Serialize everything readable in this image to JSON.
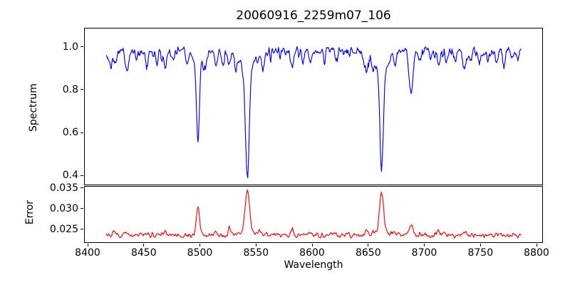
{
  "chart_data": {
    "type": "line",
    "title": "20060916_2259m07_106",
    "xlabel": "Wavelength",
    "x_start": 8416,
    "x_end": 8787,
    "x_step": 0.5,
    "xlim": [
      8396.8,
      8805.7
    ],
    "xticks": [
      8400,
      8450,
      8500,
      8550,
      8600,
      8650,
      8700,
      8750,
      8800
    ],
    "xtick_labels": [
      "8400",
      "8450",
      "8500",
      "8550",
      "8600",
      "8650",
      "8700",
      "8750",
      "8800"
    ],
    "noise_seed": 20060916,
    "grid": false,
    "legend": "none",
    "panels": [
      {
        "name": "spectrum",
        "ylabel": "Spectrum",
        "color": "#0000ff",
        "ylim": [
          0.354,
          1.089
        ],
        "yticks": [
          0.4,
          0.6,
          0.8,
          1.0
        ],
        "ytick_labels": [
          "0.4",
          "0.6",
          "0.8",
          "1.0"
        ],
        "continuum": 0.988,
        "noise_amp": 0.05,
        "micro_absorption_amp": 0.5,
        "absorption_lines": [
          [
            8417.5,
            0.05,
            1.5
          ],
          [
            8421,
            0.04,
            1.0
          ],
          [
            8424,
            0.06,
            1.2
          ],
          [
            8434.5,
            0.095,
            1.4
          ],
          [
            8443,
            0.04,
            1.0
          ],
          [
            8452,
            0.06,
            1.2
          ],
          [
            8461,
            0.05,
            1.1
          ],
          [
            8468.5,
            0.075,
            1.3
          ],
          [
            8476,
            0.05,
            1.1
          ],
          [
            8488,
            0.05,
            1.1
          ],
          [
            8498.0,
            0.39,
            1.3
          ],
          [
            8498.0,
            0.055,
            5.0
          ],
          [
            8504,
            0.05,
            1.1
          ],
          [
            8514.2,
            0.075,
            1.3
          ],
          [
            8520,
            0.06,
            1.2
          ],
          [
            8526,
            0.05,
            1.1
          ],
          [
            8532,
            0.05,
            1.1
          ],
          [
            8542.1,
            0.5,
            1.7
          ],
          [
            8542.1,
            0.085,
            7.0
          ],
          [
            8556,
            0.06,
            1.2
          ],
          [
            8582.3,
            0.065,
            1.3
          ],
          [
            8592,
            0.05,
            1.1
          ],
          [
            8598.8,
            0.055,
            1.2
          ],
          [
            8611,
            0.05,
            1.0
          ],
          [
            8621.5,
            0.05,
            1.0
          ],
          [
            8648.5,
            0.09,
            1.4
          ],
          [
            8654,
            0.05,
            1.0
          ],
          [
            8662.1,
            0.475,
            1.55
          ],
          [
            8662.1,
            0.075,
            6.0
          ],
          [
            8674,
            0.05,
            1.1
          ],
          [
            8688.6,
            0.2,
            1.7
          ],
          [
            8696,
            0.05,
            1.0
          ],
          [
            8706,
            0.04,
            1.0
          ],
          [
            8713,
            0.055,
            1.1
          ],
          [
            8720,
            0.05,
            1.0
          ],
          [
            8728,
            0.04,
            1.0
          ],
          [
            8736.5,
            0.08,
            1.3
          ],
          [
            8742,
            0.05,
            1.0
          ],
          [
            8751,
            0.04,
            1.0
          ],
          [
            8757,
            0.05,
            1.0
          ],
          [
            8765,
            0.05,
            1.0
          ],
          [
            8772,
            0.045,
            1.0
          ],
          [
            8778,
            0.04,
            1.0
          ],
          [
            8784,
            0.04,
            1.0
          ]
        ]
      },
      {
        "name": "error",
        "ylabel": "Error",
        "color": "#ff0000",
        "ylim": [
          0.0217,
          0.0355
        ],
        "yticks": [
          0.025,
          0.03,
          0.035
        ],
        "ytick_labels": [
          "0.025",
          "0.030",
          "0.035"
        ],
        "baseline": 0.0234,
        "noise_amp": 0.0016,
        "spike_amp": 0.008,
        "peaks": [
          [
            8498.0,
            0.0068,
            1.5
          ],
          [
            8542.1,
            0.0105,
            1.9
          ],
          [
            8542.1,
            0.0008,
            7.0
          ],
          [
            8662.1,
            0.01,
            1.8
          ],
          [
            8662.1,
            0.0008,
            6.0
          ],
          [
            8688.6,
            0.0029,
            1.5
          ],
          [
            8424,
            0.0008,
            1.2
          ],
          [
            8434.5,
            0.0009,
            1.4
          ],
          [
            8468.5,
            0.0007,
            1.3
          ],
          [
            8514.2,
            0.0009,
            1.3
          ],
          [
            8526,
            0.0013,
            1.0
          ],
          [
            8553,
            0.0013,
            1.0
          ],
          [
            8582.3,
            0.0008,
            1.2
          ],
          [
            8598.8,
            0.0007,
            1.2
          ],
          [
            8648.5,
            0.001,
            1.3
          ],
          [
            8713,
            0.0007,
            1.1
          ],
          [
            8736.5,
            0.0009,
            1.2
          ]
        ]
      }
    ]
  }
}
